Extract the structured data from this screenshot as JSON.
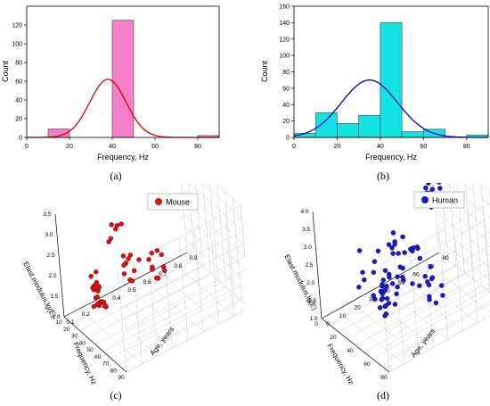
{
  "chart_data": [
    {
      "id": "a",
      "type": "bar",
      "panel_label": "(a)",
      "xlabel": "Frequency, Hz",
      "ylabel": "Count",
      "xlim": [
        0,
        90
      ],
      "ylim": [
        0,
        140
      ],
      "x_ticks": [
        "0",
        "20",
        "40",
        "60",
        "80"
      ],
      "y_ticks": [
        "0",
        "20",
        "40",
        "60",
        "80",
        "100",
        "120"
      ],
      "bar_color": "#f27fc8",
      "curve_color": "#e00000",
      "bins": [
        {
          "x0": 10,
          "x1": 20,
          "count": 9
        },
        {
          "x0": 40,
          "x1": 50,
          "count": 125
        },
        {
          "x0": 80,
          "x1": 90,
          "count": 2
        }
      ],
      "fit_curve": {
        "type": "gaussian",
        "mean": 38,
        "sd": 8.5,
        "peak": 62
      }
    },
    {
      "id": "b",
      "type": "bar",
      "panel_label": "(b)",
      "xlabel": "Frequency, Hz",
      "ylabel": "Count",
      "xlim": [
        0,
        90
      ],
      "ylim": [
        0,
        160
      ],
      "x_ticks": [
        "0",
        "20",
        "40",
        "60",
        "80"
      ],
      "y_ticks": [
        "0",
        "20",
        "40",
        "60",
        "80",
        "100",
        "120",
        "140",
        "160"
      ],
      "bar_color": "#14e3e3",
      "curve_color": "#0000d0",
      "bins": [
        {
          "x0": 0,
          "x1": 10,
          "count": 5
        },
        {
          "x0": 10,
          "x1": 20,
          "count": 30
        },
        {
          "x0": 20,
          "x1": 30,
          "count": 17
        },
        {
          "x0": 30,
          "x1": 40,
          "count": 27
        },
        {
          "x0": 40,
          "x1": 50,
          "count": 140
        },
        {
          "x0": 50,
          "x1": 60,
          "count": 7
        },
        {
          "x0": 60,
          "x1": 70,
          "count": 10
        },
        {
          "x0": 70,
          "x1": 80,
          "count": 0
        },
        {
          "x0": 80,
          "x1": 90,
          "count": 3
        }
      ],
      "fit_curve": {
        "type": "gaussian",
        "mean": 35,
        "sd": 13,
        "peak": 70
      }
    },
    {
      "id": "c",
      "type": "scatter",
      "panel_label": "(c)",
      "dimensions": 3,
      "legend": "Mouse",
      "legend_position": "top-right",
      "marker_color": "#dd1111",
      "x_axis": {
        "label": "Frequency, Hz",
        "ticks": [
          "90",
          "80",
          "70",
          "60",
          "50",
          "40",
          "30",
          "20",
          "10"
        ]
      },
      "y_axis": {
        "label": "Age, years",
        "ticks": [
          "0.1",
          "0.2",
          "0.3",
          "0.4",
          "0.5",
          "0.6",
          "0.7",
          "0.8",
          "0.9"
        ]
      },
      "z_axis": {
        "label": "Elast.modulus,lg(E)",
        "ticks": [
          "1.0",
          "1.5",
          "2.0",
          "2.5",
          "3.0",
          "3.5"
        ]
      }
    },
    {
      "id": "d",
      "type": "scatter",
      "panel_label": "(d)",
      "dimensions": 3,
      "legend": "Human",
      "legend_position": "top-right",
      "marker_color": "#1a1ac8",
      "x_axis": {
        "label": "Frequency, Hz",
        "ticks": [
          "80",
          "60",
          "40",
          "20",
          "0"
        ]
      },
      "y_axis": {
        "label": "Age, years",
        "ticks": [
          "0",
          "10",
          "20",
          "30",
          "40",
          "50",
          "60",
          "70",
          "80"
        ]
      },
      "z_axis": {
        "label": "Elast.modulus,lg(E)",
        "ticks": [
          "1.0",
          "1.5",
          "2.0",
          "2.5",
          "3.0",
          "3.5",
          "4.0"
        ]
      }
    }
  ]
}
